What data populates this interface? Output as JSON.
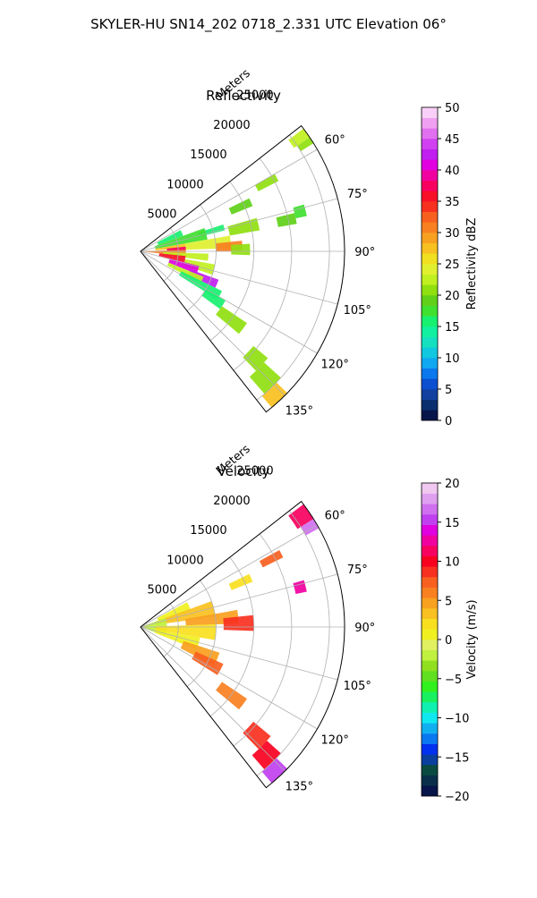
{
  "figure": {
    "suptitle": "SKYLER-HU  SN14_202  0718_2.331 UTC Elevation 06°"
  },
  "chart_data": [
    {
      "type": "heatmap",
      "projection": "polar-sector",
      "title": "Reflectivity",
      "radial_label": "Meters",
      "radial_ticks": [
        5000,
        10000,
        15000,
        20000,
        25000
      ],
      "rlim": [
        0,
        27000
      ],
      "azimuth_range_deg": [
        52,
        142
      ],
      "azimuth_ticks": [
        "60°",
        "75°",
        "90°",
        "105°",
        "120°",
        "135°"
      ],
      "grid": true,
      "colorbar": {
        "label": "Reflectivity dBZ",
        "range": [
          0,
          50
        ],
        "ticks": [
          "0",
          "5",
          "10",
          "15",
          "20",
          "25",
          "30",
          "35",
          "40",
          "45",
          "50"
        ],
        "colors": [
          "#08154a",
          "#0a2f6e",
          "#1040a0",
          "#0a50d0",
          "#0b78ee",
          "#10a8f0",
          "#10c8e0",
          "#14e0c0",
          "#10f0a0",
          "#18f070",
          "#40e030",
          "#60d018",
          "#90e010",
          "#c0f020",
          "#e0f030",
          "#f0e020",
          "#f8c020",
          "#f8a020",
          "#f88020",
          "#f86020",
          "#f83020",
          "#f81028",
          "#f80060",
          "#f000a0",
          "#e000e0",
          "#c020f0",
          "#d040f0",
          "#e070f0",
          "#f0a0f0",
          "#f8d0f8"
        ]
      },
      "cells": [
        {
          "az": [
            53,
            56
          ],
          "r": [
            24500,
            27000
          ],
          "v": 22
        },
        {
          "az": [
            56,
            58
          ],
          "r": [
            25000,
            27000
          ],
          "v": 20
        },
        {
          "az": [
            60,
            63
          ],
          "r": [
            17500,
            20500
          ],
          "v": 20
        },
        {
          "az": [
            64,
            68
          ],
          "r": [
            13000,
            16000
          ],
          "v": 19
        },
        {
          "az": [
            72,
            76
          ],
          "r": [
            8000,
            11500
          ],
          "v": 16
        },
        {
          "az": [
            74,
            80
          ],
          "r": [
            12000,
            16000
          ],
          "v": 20
        },
        {
          "az": [
            76,
            80
          ],
          "r": [
            18500,
            21000
          ],
          "v": 19
        },
        {
          "az": [
            62,
            70
          ],
          "r": [
            2500,
            6000
          ],
          "v": 16
        },
        {
          "az": [
            70,
            80
          ],
          "r": [
            2000,
            9000
          ],
          "v": 18
        },
        {
          "az": [
            80,
            86
          ],
          "r": [
            2000,
            6000
          ],
          "v": 27
        },
        {
          "az": [
            80,
            88
          ],
          "r": [
            6000,
            12000
          ],
          "v": 24
        },
        {
          "az": [
            84,
            90
          ],
          "r": [
            10000,
            13500
          ],
          "v": 30
        },
        {
          "az": [
            86,
            92
          ],
          "r": [
            12000,
            14500
          ],
          "v": 20
        },
        {
          "az": [
            84,
            90
          ],
          "r": [
            3500,
            6000
          ],
          "v": 37
        },
        {
          "az": [
            88,
            96
          ],
          "r": [
            0,
            6000
          ],
          "v": 30
        },
        {
          "az": [
            92,
            98
          ],
          "r": [
            3000,
            9000
          ],
          "v": 22
        },
        {
          "az": [
            96,
            104
          ],
          "r": [
            2500,
            6000
          ],
          "v": 36
        },
        {
          "az": [
            100,
            108
          ],
          "r": [
            6000,
            10000
          ],
          "v": 23
        },
        {
          "az": [
            104,
            112
          ],
          "r": [
            4000,
            8000
          ],
          "v": 40
        },
        {
          "az": [
            110,
            116
          ],
          "r": [
            7000,
            11000
          ],
          "v": 42
        },
        {
          "az": [
            112,
            118
          ],
          "r": [
            4000,
            9000
          ],
          "v": 22
        },
        {
          "az": [
            116,
            122
          ],
          "r": [
            6000,
            12000
          ],
          "v": 16
        },
        {
          "az": [
            120,
            126
          ],
          "r": [
            10000,
            13000
          ],
          "v": 15
        },
        {
          "az": [
            124,
            130
          ],
          "r": [
            13000,
            17000
          ],
          "v": 21
        },
        {
          "az": [
            130,
            136
          ],
          "r": [
            19500,
            22000
          ],
          "v": 21
        },
        {
          "az": [
            132,
            139
          ],
          "r": [
            22000,
            25000
          ],
          "v": 20
        },
        {
          "az": [
            134,
            140
          ],
          "r": [
            25000,
            27000
          ],
          "v": 28
        },
        {
          "az": [
            74,
            78
          ],
          "r": [
            21000,
            22500
          ],
          "v": 17
        }
      ]
    },
    {
      "type": "heatmap",
      "projection": "polar-sector",
      "title": "Velocity",
      "radial_label": "Meters",
      "radial_ticks": [
        5000,
        10000,
        15000,
        20000,
        25000
      ],
      "rlim": [
        0,
        27000
      ],
      "azimuth_range_deg": [
        52,
        142
      ],
      "azimuth_ticks": [
        "60°",
        "75°",
        "90°",
        "105°",
        "120°",
        "135°"
      ],
      "grid": true,
      "colorbar": {
        "label": "Velocity (m/s)",
        "range": [
          -20,
          20
        ],
        "ticks": [
          "−20",
          "−15",
          "−10",
          "−5",
          "0",
          "5",
          "10",
          "15",
          "20"
        ],
        "colors": [
          "#08154a",
          "#0a2f4a",
          "#0a4a40",
          "#0a3fa0",
          "#0030f0",
          "#0a78f0",
          "#10b0f0",
          "#10e8f0",
          "#10f0b0",
          "#18f060",
          "#30f020",
          "#60e020",
          "#90e020",
          "#c0f040",
          "#e0f060",
          "#f0f020",
          "#f8e020",
          "#f8c020",
          "#f8a020",
          "#f88020",
          "#f86020",
          "#f83020",
          "#f80020",
          "#f80060",
          "#f000a0",
          "#e000e0",
          "#c040f0",
          "#d070f0",
          "#e0a0f0",
          "#f0c8f0"
        ]
      },
      "cells": [
        {
          "az": [
            53,
            58
          ],
          "r": [
            24500,
            27000
          ],
          "v": 11
        },
        {
          "az": [
            58,
            61
          ],
          "r": [
            25000,
            27000
          ],
          "v": 16
        },
        {
          "az": [
            61,
            64
          ],
          "r": [
            18000,
            21000
          ],
          "v": 7
        },
        {
          "az": [
            64,
            68
          ],
          "r": [
            13000,
            16000
          ],
          "v": 2
        },
        {
          "az": [
            62,
            72
          ],
          "r": [
            2500,
            7000
          ],
          "v": 1
        },
        {
          "az": [
            70,
            82
          ],
          "r": [
            2000,
            10000
          ],
          "v": 3
        },
        {
          "az": [
            80,
            88
          ],
          "r": [
            6000,
            13000
          ],
          "v": 5
        },
        {
          "az": [
            84,
            92
          ],
          "r": [
            11000,
            15000
          ],
          "v": 8
        },
        {
          "az": [
            70,
            110
          ],
          "r": [
            0,
            3500
          ],
          "v": -2
        },
        {
          "az": [
            88,
            100
          ],
          "r": [
            2000,
            10000
          ],
          "v": 2
        },
        {
          "az": [
            100,
            112
          ],
          "r": [
            2000,
            8000
          ],
          "v": 1
        },
        {
          "az": [
            108,
            118
          ],
          "r": [
            6000,
            11000
          ],
          "v": 4
        },
        {
          "az": [
            114,
            122
          ],
          "r": [
            8000,
            12000
          ],
          "v": 7
        },
        {
          "az": [
            124,
            130
          ],
          "r": [
            13000,
            17000
          ],
          "v": 6
        },
        {
          "az": [
            130,
            136
          ],
          "r": [
            19500,
            22500
          ],
          "v": 8
        },
        {
          "az": [
            132,
            139
          ],
          "r": [
            22500,
            25000
          ],
          "v": 10
        },
        {
          "az": [
            134,
            140
          ],
          "r": [
            25000,
            27000
          ],
          "v": 15
        },
        {
          "az": [
            74,
            78
          ],
          "r": [
            21000,
            22500
          ],
          "v": 12
        }
      ]
    }
  ]
}
